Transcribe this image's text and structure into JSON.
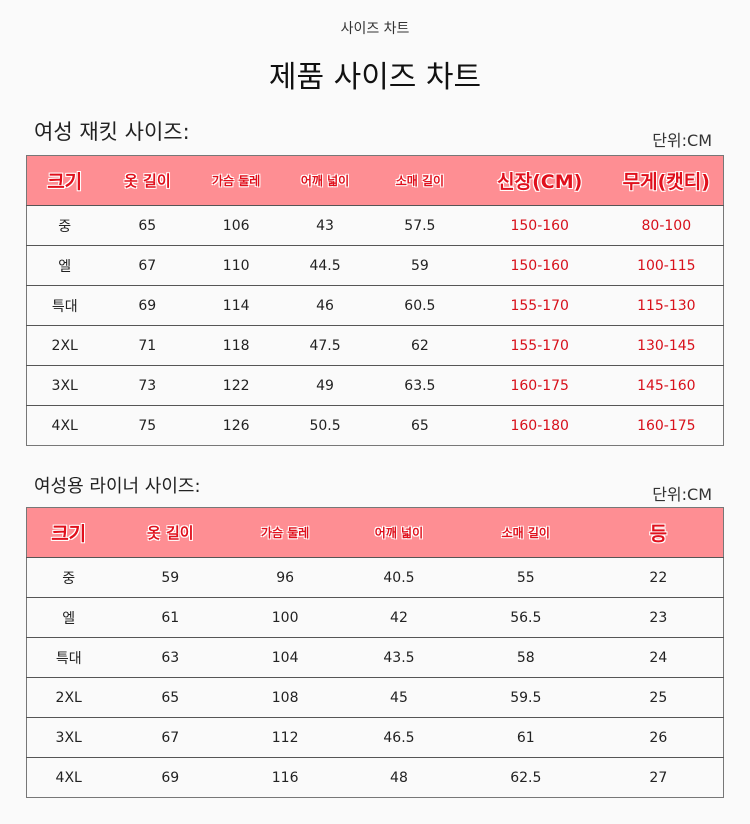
{
  "header": {
    "subtitle": "사이즈 차트",
    "title": "제품 사이즈 차트"
  },
  "jacket": {
    "title": "여성 재킷 사이즈:",
    "unit": "단위:CM",
    "columns": [
      "크기",
      "옷 길이",
      "가슴 둘레",
      "어깨 넓이",
      "소매 길이",
      "신장(CM)",
      "무게(캣티)"
    ],
    "rows": [
      [
        "중",
        "65",
        "106",
        "43",
        "57.5",
        "150-160",
        "80-100"
      ],
      [
        "엘",
        "67",
        "110",
        "44.5",
        "59",
        "150-160",
        "100-115"
      ],
      [
        "특대",
        "69",
        "114",
        "46",
        "60.5",
        "155-170",
        "115-130"
      ],
      [
        "2XL",
        "71",
        "118",
        "47.5",
        "62",
        "155-170",
        "130-145"
      ],
      [
        "3XL",
        "73",
        "122",
        "49",
        "63.5",
        "160-175",
        "145-160"
      ],
      [
        "4XL",
        "75",
        "126",
        "50.5",
        "65",
        "160-180",
        "160-175"
      ]
    ]
  },
  "liner": {
    "title": "여성용 라이너 사이즈:",
    "unit": "단위:CM",
    "columns": [
      "크기",
      "옷 길이",
      "가슴 둘레",
      "어깨 넓이",
      "소매 길이",
      "등"
    ],
    "rows": [
      [
        "중",
        "59",
        "96",
        "40.5",
        "55",
        "22"
      ],
      [
        "엘",
        "61",
        "100",
        "42",
        "56.5",
        "23"
      ],
      [
        "특대",
        "63",
        "104",
        "43.5",
        "58",
        "24"
      ],
      [
        "2XL",
        "65",
        "108",
        "45",
        "59.5",
        "25"
      ],
      [
        "3XL",
        "67",
        "112",
        "46.5",
        "61",
        "26"
      ],
      [
        "4XL",
        "69",
        "116",
        "48",
        "62.5",
        "27"
      ]
    ]
  }
}
